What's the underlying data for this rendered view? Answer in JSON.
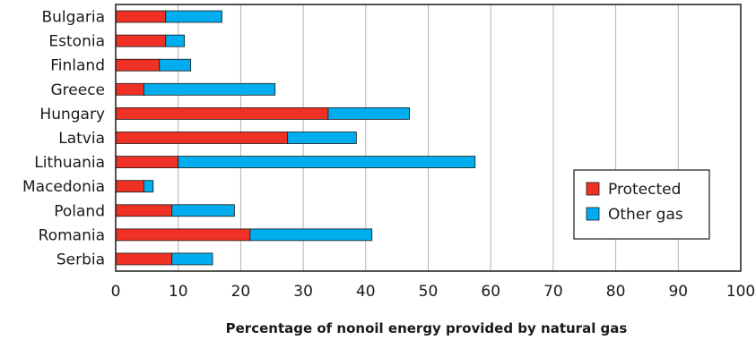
{
  "chart_data": {
    "type": "bar",
    "orientation": "horizontal",
    "stacked": true,
    "categories": [
      "Bulgaria",
      "Estonia",
      "Finland",
      "Greece",
      "Hungary",
      "Latvia",
      "Lithuania",
      "Macedonia",
      "Poland",
      "Romania",
      "Serbia"
    ],
    "series": [
      {
        "name": "Protected",
        "color": "#ee3124",
        "values": [
          8,
          8,
          7,
          4.5,
          34,
          27.5,
          10,
          4.5,
          9,
          21.5,
          9
        ]
      },
      {
        "name": "Other gas",
        "color": "#00aeef",
        "values": [
          9,
          3,
          5,
          21,
          13,
          11,
          47.5,
          1.5,
          10,
          19.5,
          6.5
        ]
      }
    ],
    "xlim": [
      0,
      100
    ],
    "xticks": [
      0,
      10,
      20,
      30,
      40,
      50,
      60,
      70,
      80,
      90,
      100
    ],
    "xlabel": "Percentage of nonoil energy provided by natural gas",
    "grid": "vertical",
    "legend_position": "right"
  }
}
